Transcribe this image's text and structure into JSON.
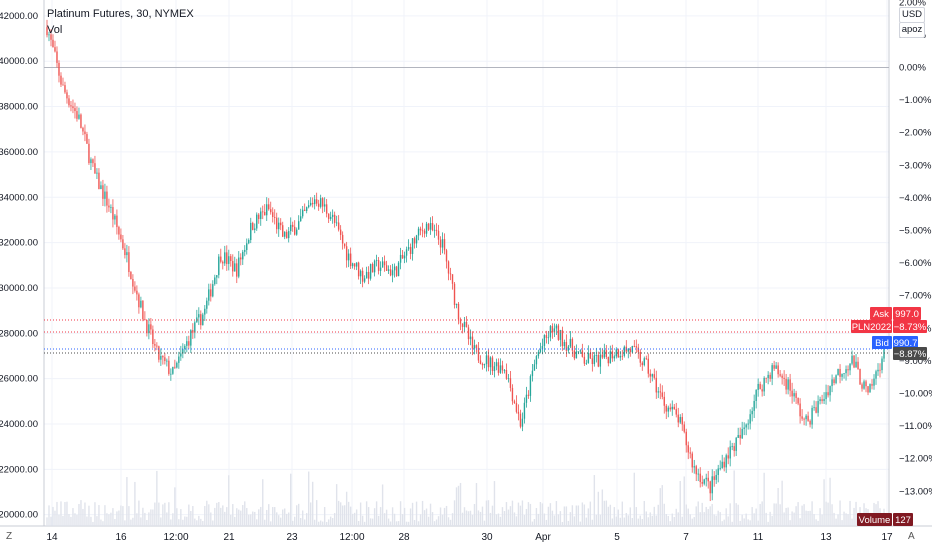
{
  "header": {
    "title": "Platinum Futures, 30, NYMEX",
    "volume_label": "Vol"
  },
  "scale_buttons": {
    "currency": "USD",
    "mode": "apoz"
  },
  "corner_buttons": {
    "left": "Z",
    "right": "A"
  },
  "price_axis_labels": [
    "42000.00",
    "40000.00",
    "38000.00",
    "36000.00",
    "34000.00",
    "32000.00",
    "30000.00",
    "28000.00",
    "26000.00",
    "24000.00",
    "22000.00",
    "20000.00"
  ],
  "percent_axis_labels": [
    "2.00%",
    "1.00%",
    "0.00%",
    "-1.00%",
    "-2.00%",
    "-3.00%",
    "-4.00%",
    "-5.00%",
    "-6.00%",
    "-7.00%",
    "-8.00%",
    "-9.00%",
    "-10.00%",
    "-11.00%",
    "-12.00%",
    "-13.00%"
  ],
  "time_axis_labels": [
    "14",
    "16",
    "12:00",
    "21",
    "23",
    "12:00",
    "28",
    "30",
    "Apr",
    "5",
    "7",
    "11",
    "13",
    "17"
  ],
  "markers": {
    "ask": {
      "label": "Ask",
      "value": "997.0",
      "color": "#f23645"
    },
    "symbol": {
      "label": "PLN2022",
      "value": "−8.73%",
      "color": "#f23645"
    },
    "bid": {
      "label": "Bid",
      "value": "990.7",
      "color": "#2962ff"
    },
    "last": {
      "value": "−8.87%",
      "color": "#4a4a4a"
    },
    "volume": {
      "label": "Volume",
      "value": "127",
      "color": "#801922"
    }
  },
  "colors": {
    "up": "#26a69a",
    "down": "#ef5350",
    "grid": "#f0f3fa",
    "baseline": "#b2b5be",
    "volume_bar": "#e0e3eb"
  },
  "chart_data": {
    "type": "candlestick",
    "title": "Platinum Futures, 30, NYMEX",
    "ylim": [
      19500,
      42700
    ],
    "x_start": "14",
    "x_end": "17",
    "anchors": [
      {
        "t": "14",
        "close": 41500
      },
      {
        "t": "14",
        "close": 38800
      },
      {
        "t": "14",
        "close": 37500
      },
      {
        "t": "14",
        "close": 35000
      },
      {
        "t": "14",
        "close": 33500
      },
      {
        "t": "14",
        "close": 31500
      },
      {
        "t": "16",
        "close": 29000
      },
      {
        "t": "16",
        "close": 27000
      },
      {
        "t": "16",
        "close": 26200
      },
      {
        "t": "16",
        "close": 27800
      },
      {
        "t": "16",
        "close": 29000
      },
      {
        "t": "12:00",
        "close": 31500
      },
      {
        "t": "12:00",
        "close": 30800
      },
      {
        "t": "12:00",
        "close": 32800
      },
      {
        "t": "21",
        "close": 33500
      },
      {
        "t": "21",
        "close": 32200
      },
      {
        "t": "21",
        "close": 32900
      },
      {
        "t": "21",
        "close": 34000
      },
      {
        "t": "21",
        "close": 33200
      },
      {
        "t": "23",
        "close": 31500
      },
      {
        "t": "23",
        "close": 30500
      },
      {
        "t": "23",
        "close": 31000
      },
      {
        "t": "23",
        "close": 30700
      },
      {
        "t": "12:00",
        "close": 31800
      },
      {
        "t": "12:00",
        "close": 32800
      },
      {
        "t": "12:00",
        "close": 32000
      },
      {
        "t": "28",
        "close": 29000
      },
      {
        "t": "28",
        "close": 27200
      },
      {
        "t": "28",
        "close": 26700
      },
      {
        "t": "28",
        "close": 26500
      },
      {
        "t": "30",
        "close": 24000
      },
      {
        "t": "30",
        "close": 27000
      },
      {
        "t": "30",
        "close": 28200
      },
      {
        "t": "30",
        "close": 27500
      },
      {
        "t": "30",
        "close": 26800
      },
      {
        "t": "Apr",
        "close": 26800
      },
      {
        "t": "Apr",
        "close": 27200
      },
      {
        "t": "Apr",
        "close": 27300
      },
      {
        "t": "5",
        "close": 26500
      },
      {
        "t": "5",
        "close": 25000
      },
      {
        "t": "5",
        "close": 24200
      },
      {
        "t": "7",
        "close": 22000
      },
      {
        "t": "7",
        "close": 21200
      },
      {
        "t": "7",
        "close": 22600
      },
      {
        "t": "7",
        "close": 23500
      },
      {
        "t": "11",
        "close": 25500
      },
      {
        "t": "11",
        "close": 26500
      },
      {
        "t": "11",
        "close": 25700
      },
      {
        "t": "13",
        "close": 24000
      },
      {
        "t": "13",
        "close": 25000
      },
      {
        "t": "13",
        "close": 26200
      },
      {
        "t": "17",
        "close": 26800
      },
      {
        "t": "17",
        "close": 25200
      },
      {
        "t": "17",
        "close": 27200
      }
    ],
    "ask": 997.0,
    "bid": 990.7,
    "change_percent": -8.73
  }
}
